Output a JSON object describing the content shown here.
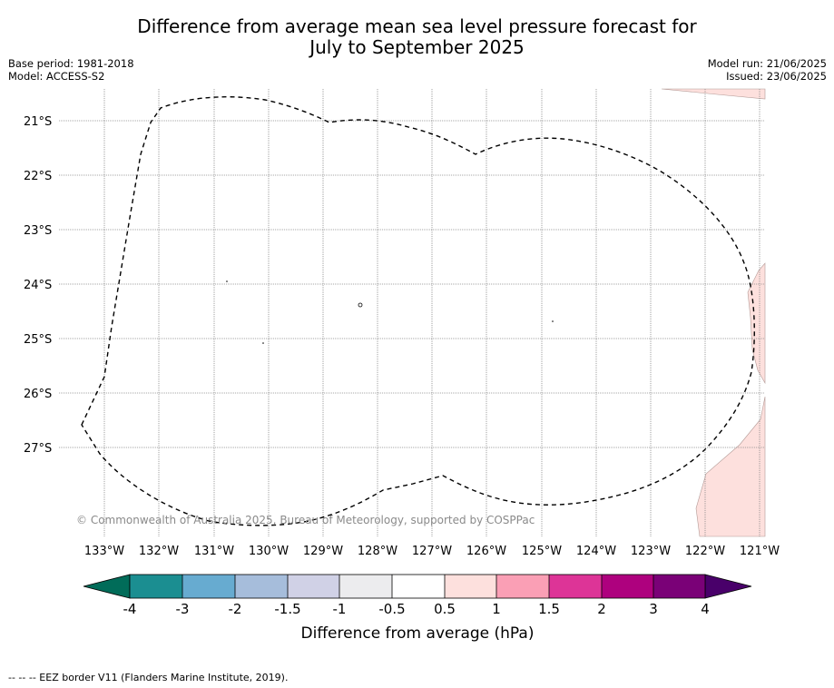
{
  "header": {
    "title_line1": "Difference from average mean sea level pressure forecast for",
    "title_line2": "July to September 2025",
    "base_period": "Base period: 1981-2018",
    "model": "Model: ACCESS-S2",
    "model_run": "Model run: 21/06/2025",
    "issued": "Issued: 23/06/2025"
  },
  "map": {
    "lat_labels": [
      "21°S",
      "22°S",
      "23°S",
      "24°S",
      "25°S",
      "26°S",
      "27°S"
    ],
    "lon_labels": [
      "133°W",
      "132°W",
      "131°W",
      "130°W",
      "129°W",
      "128°W",
      "127°W",
      "126°W",
      "125°W",
      "124°W",
      "123°W",
      "122°W",
      "121°W"
    ],
    "copyright": "© Commonwealth of Australia 2025, Bureau of Meteorology, supported by COSPPac",
    "anomaly_fill_color": "#fde0dd",
    "eez_line_style": "dashed black"
  },
  "colorbar": {
    "label": "Difference from average (hPa)",
    "tick_labels": [
      "-4",
      "-3",
      "-2",
      "-1.5",
      "-1",
      "-0.5",
      "0.5",
      "1",
      "1.5",
      "2",
      "3",
      "4"
    ],
    "colors": [
      "#1b8e91",
      "#67abd0",
      "#a6bddb",
      "#d0d1e6",
      "#ececee",
      "#ffffff",
      "#fde0dd",
      "#fa9fb5",
      "#dd3497",
      "#ae017e",
      "#7a0177"
    ],
    "under_color": "#016c59",
    "over_color": "#49006a"
  },
  "footer": {
    "legend": "--  --  -- EEZ border V11 (Flanders Marine Institute, 2019)."
  }
}
